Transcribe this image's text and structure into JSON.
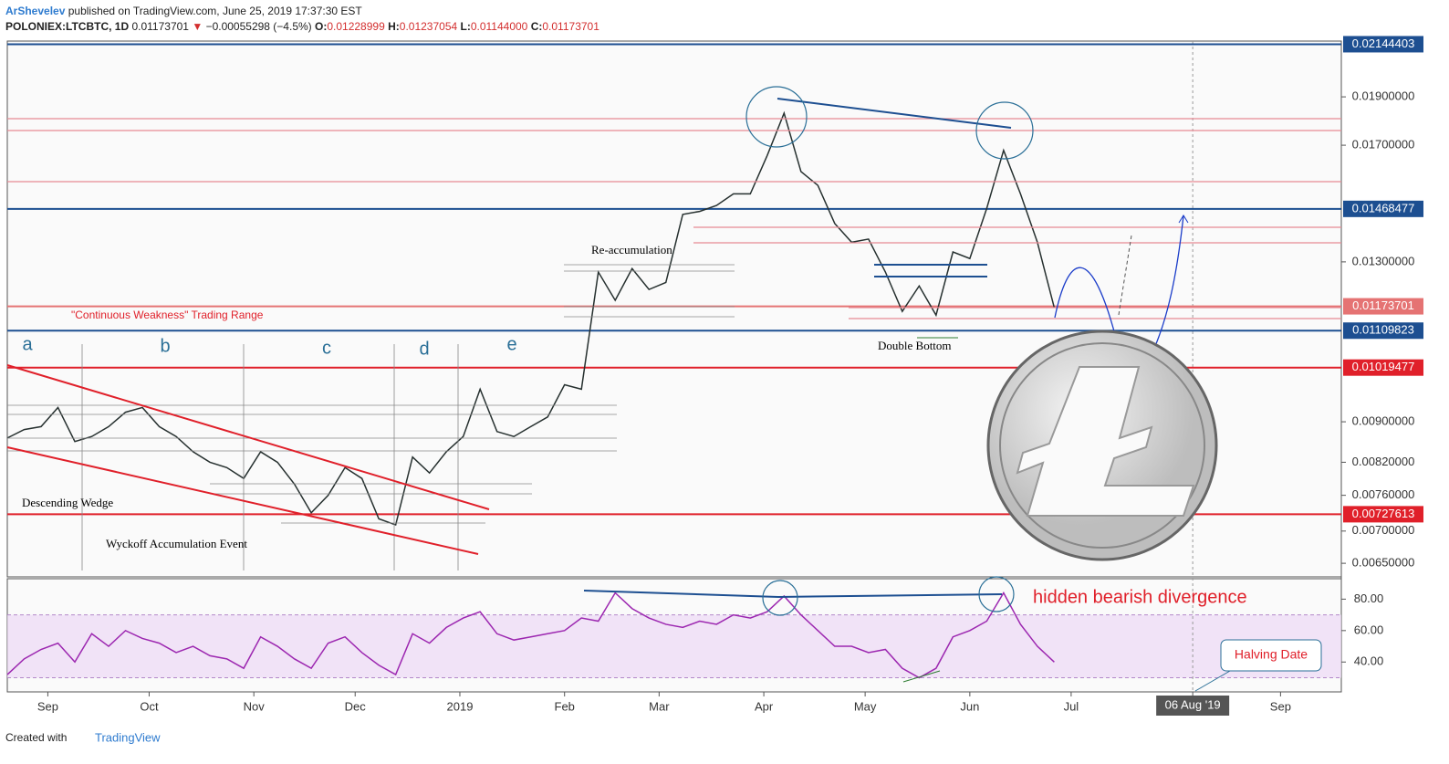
{
  "header": {
    "author": "ArShevelev",
    "published": "published on TradingView.com, June 25, 2019 17:37:30 EST",
    "symbol": "POLONIEX:LTCBTC, 1D",
    "last": "0.01173701",
    "arrow": "▼",
    "change": "−0.00055298 (−4.5%)",
    "o_label": "O:",
    "open": "0.01228999",
    "h_label": "H:",
    "high": "0.01237054",
    "l_label": "L:",
    "low": "0.01144000",
    "c_label": "C:",
    "close": "0.01173701"
  },
  "chart_data": [
    {
      "type": "line",
      "log_scale": true,
      "color": "#26302f",
      "x": [
        0,
        5,
        10,
        15,
        20,
        25,
        30,
        35,
        40,
        45,
        50,
        55,
        60,
        65,
        70,
        75,
        80,
        85,
        90,
        95,
        100,
        105,
        110,
        115,
        120,
        125,
        130,
        135,
        140,
        145,
        150,
        155,
        160,
        165,
        170,
        175,
        180,
        185,
        190,
        195,
        200,
        205,
        210,
        215,
        220,
        225,
        230,
        235,
        240,
        245,
        250,
        255,
        260,
        265,
        270,
        275,
        280,
        285,
        290,
        295,
        300,
        305,
        310
      ],
      "values": [
        0.00867,
        0.00884,
        0.0089,
        0.0093,
        0.0086,
        0.0087,
        0.0089,
        0.0092,
        0.0093,
        0.0089,
        0.0087,
        0.0084,
        0.0082,
        0.0081,
        0.0079,
        0.0084,
        0.0082,
        0.0078,
        0.0073,
        0.0076,
        0.0081,
        0.0079,
        0.0072,
        0.0071,
        0.0083,
        0.008,
        0.0084,
        0.0087,
        0.0097,
        0.0088,
        0.0087,
        0.0089,
        0.0091,
        0.0098,
        0.0097,
        0.0127,
        0.0119,
        0.0128,
        0.0122,
        0.0124,
        0.0145,
        0.0146,
        0.0148,
        0.0152,
        0.0152,
        0.0166,
        0.0183,
        0.016,
        0.0155,
        0.0142,
        0.0136,
        0.0137,
        0.0127,
        0.0116,
        0.0123,
        0.0115,
        0.0133,
        0.0131,
        0.0147,
        0.0168,
        0.0152,
        0.0136,
        0.0117
      ],
      "xlim": [
        0,
        395
      ],
      "xticks": [
        {
          "value": 12,
          "label": "Sep"
        },
        {
          "value": 42,
          "label": "Oct"
        },
        {
          "value": 73,
          "label": "Nov"
        },
        {
          "value": 103,
          "label": "Dec"
        },
        {
          "value": 134,
          "label": "2019"
        },
        {
          "value": 165,
          "label": "Feb"
        },
        {
          "value": 193,
          "label": "Mar"
        },
        {
          "value": 224,
          "label": "Apr"
        },
        {
          "value": 254,
          "label": "May"
        },
        {
          "value": 285,
          "label": "Jun"
        },
        {
          "value": 315,
          "label": "Jul"
        },
        {
          "value": 351,
          "label": "06 Aug '19"
        },
        {
          "value": 377,
          "label": "Sep"
        }
      ],
      "ylim": [
        0.0063,
        0.0216
      ],
      "yticks": [
        {
          "value": 0.0065,
          "label": "0.00650000"
        },
        {
          "value": 0.007,
          "label": "0.00700000"
        },
        {
          "value": 0.0076,
          "label": "0.00760000"
        },
        {
          "value": 0.0082,
          "label": "0.00820000"
        },
        {
          "value": 0.009,
          "label": "0.00900000"
        },
        {
          "value": 0.013,
          "label": "0.01300000"
        },
        {
          "value": 0.017,
          "label": "0.01700000"
        },
        {
          "value": 0.019,
          "label": "0.01900000"
        }
      ],
      "levels": [
        {
          "value": 0.02144403,
          "color": "#1d4f91"
        },
        {
          "value": 0.01468477,
          "color": "#1d4f91"
        },
        {
          "value": 0.01173701,
          "color": "#e57373"
        },
        {
          "value": 0.01109823,
          "color": "#1d4f91"
        },
        {
          "value": 0.01019477,
          "color": "#e0202a"
        },
        {
          "value": 0.00727613,
          "color": "#e0202a"
        }
      ],
      "annotations": [
        "a",
        "b",
        "c",
        "d",
        "e",
        "Descending Wedge",
        "Wyckoff Accumulation Event",
        "\"Continuous Weakness\" Trading Range",
        "Re-accumulation",
        "Double Bottom",
        "hidden bearish divergence",
        "Halving Date"
      ]
    },
    {
      "type": "line",
      "color": "#9c27b0",
      "values": [
        32,
        42,
        48,
        52,
        40,
        58,
        50,
        60,
        55,
        52,
        46,
        50,
        44,
        42,
        36,
        56,
        50,
        42,
        36,
        52,
        56,
        46,
        38,
        32,
        58,
        52,
        62,
        68,
        72,
        58,
        54,
        56,
        58,
        60,
        68,
        66,
        84,
        74,
        68,
        64,
        62,
        66,
        64,
        70,
        68,
        72,
        82,
        70,
        60,
        50,
        50,
        46,
        48,
        36,
        30,
        36,
        56,
        60,
        66,
        84,
        64,
        50,
        40
      ],
      "ylim": [
        21,
        93
      ],
      "band": [
        30,
        70
      ],
      "yticks": [
        {
          "value": 80,
          "label": "80.00"
        },
        {
          "value": 60,
          "label": "60.00"
        },
        {
          "value": 40,
          "label": "40.00"
        }
      ]
    }
  ],
  "footer": {
    "created": "Created with",
    "brand": "TradingView"
  }
}
